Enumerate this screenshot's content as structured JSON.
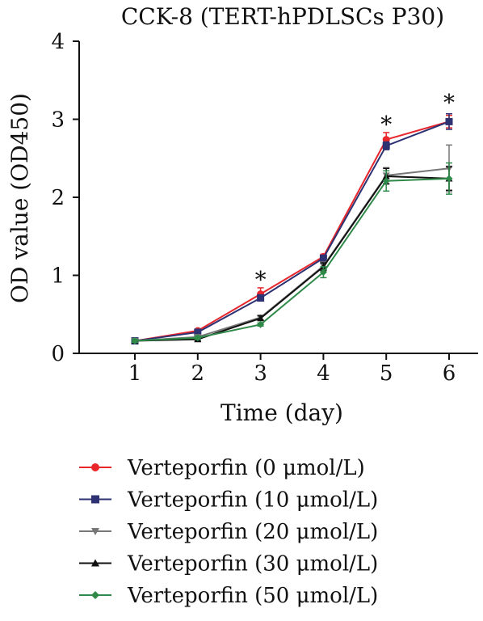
{
  "chart_data": {
    "type": "line",
    "title": "CCK-8 (TERT-hPDLSCs P30)",
    "xlabel": "Time (day)",
    "ylabel": "OD value (OD450)",
    "x": [
      1,
      2,
      3,
      4,
      5,
      6
    ],
    "xlim": [
      0.5,
      6.5
    ],
    "ylim": [
      0,
      4
    ],
    "xticks": [
      "1",
      "2",
      "3",
      "4",
      "5",
      "6"
    ],
    "yticks": [
      "0",
      "1",
      "2",
      "3",
      "4"
    ],
    "grid": false,
    "legend_position": "bottom",
    "annotations": [
      {
        "text": "*",
        "x": 3,
        "y": 1.03
      },
      {
        "text": "*",
        "x": 5,
        "y": 3.02
      },
      {
        "text": "*",
        "x": 6,
        "y": 3.3
      }
    ],
    "series": [
      {
        "name": "Verteporfin (0 μmol/L)",
        "color": "#e8262b",
        "marker": "circle",
        "values": [
          0.16,
          0.29,
          0.76,
          1.24,
          2.74,
          2.97
        ],
        "errors": [
          0.02,
          0.02,
          0.08,
          0.03,
          0.09,
          0.08
        ]
      },
      {
        "name": "Verteporfin (10 μmol/L)",
        "color": "#2e3272",
        "marker": "square",
        "values": [
          0.16,
          0.27,
          0.71,
          1.22,
          2.66,
          2.97
        ],
        "errors": [
          0.02,
          0.02,
          0.04,
          0.03,
          0.05,
          0.1
        ]
      },
      {
        "name": "Verteporfin (20 μmol/L)",
        "color": "#777777",
        "marker": "triangle-down",
        "values": [
          0.16,
          0.21,
          0.46,
          1.12,
          2.28,
          2.37
        ],
        "errors": [
          0.02,
          0.02,
          0.03,
          0.05,
          0.1,
          0.3
        ]
      },
      {
        "name": "Verteporfin (30 μmol/L)",
        "color": "#111111",
        "marker": "triangle-up",
        "values": [
          0.16,
          0.18,
          0.45,
          1.11,
          2.27,
          2.24
        ],
        "errors": [
          0.02,
          0.02,
          0.03,
          0.05,
          0.1,
          0.15
        ]
      },
      {
        "name": "Verteporfin (50 μmol/L)",
        "color": "#2f8a4a",
        "marker": "diamond",
        "values": [
          0.16,
          0.2,
          0.37,
          1.04,
          2.21,
          2.24
        ],
        "errors": [
          0.02,
          0.02,
          0.02,
          0.07,
          0.13,
          0.2
        ]
      }
    ]
  }
}
